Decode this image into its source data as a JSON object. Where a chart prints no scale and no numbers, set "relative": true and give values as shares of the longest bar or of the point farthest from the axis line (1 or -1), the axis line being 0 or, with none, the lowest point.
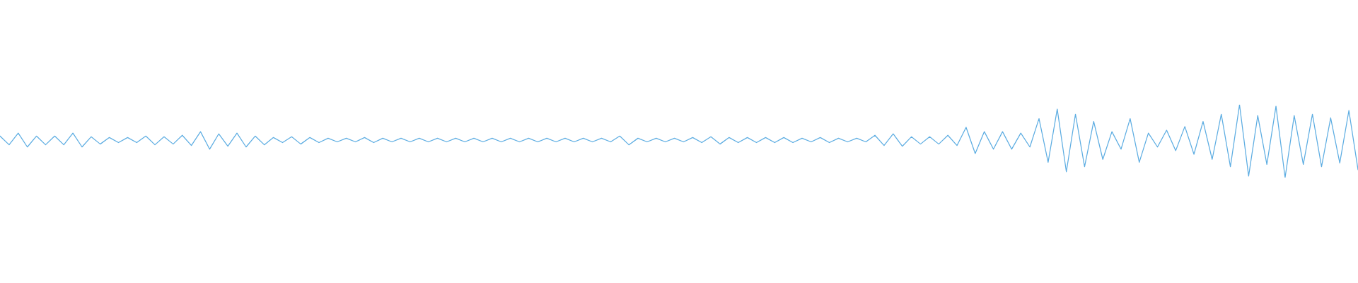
{
  "chart_data": {
    "type": "line",
    "relative": true,
    "color": "#5dade2",
    "categories": [
      null,
      null,
      null,
      null,
      null,
      null,
      null,
      null,
      null,
      null,
      null,
      null,
      null,
      null,
      null,
      null,
      null,
      null,
      null,
      null,
      null,
      null,
      null,
      null,
      null,
      null,
      null,
      null,
      null,
      null,
      null,
      null,
      null,
      null,
      null,
      null,
      null,
      null,
      null,
      null,
      null,
      null,
      null,
      null,
      null,
      null,
      null,
      null,
      null,
      null,
      null,
      null,
      null,
      null,
      null,
      null,
      null,
      null,
      null,
      null,
      null,
      null,
      null,
      null,
      null,
      null,
      null,
      null,
      null,
      null,
      null,
      null,
      null,
      null,
      null,
      null,
      null,
      null,
      null,
      null,
      null,
      null,
      null,
      null,
      null,
      null,
      null,
      null,
      null,
      null,
      null,
      null,
      null,
      null,
      null,
      null,
      null,
      null,
      null,
      null,
      null,
      null,
      null,
      null,
      null,
      null,
      null,
      null,
      null,
      null,
      null,
      null,
      null,
      null,
      null,
      null,
      null,
      null,
      null,
      null,
      null,
      null,
      null,
      null,
      null,
      null,
      null,
      null,
      null,
      null,
      null,
      null,
      null,
      null,
      null,
      null,
      null,
      null,
      null,
      null,
      null,
      null,
      null,
      null,
      null,
      null,
      null,
      null,
      null,
      null
    ],
    "values": [
      0.57,
      0.45,
      0.61,
      0.42,
      0.57,
      0.45,
      0.57,
      0.45,
      0.61,
      0.42,
      0.56,
      0.46,
      0.55,
      0.48,
      0.55,
      0.48,
      0.57,
      0.45,
      0.56,
      0.46,
      0.58,
      0.44,
      0.63,
      0.39,
      0.6,
      0.43,
      0.61,
      0.42,
      0.57,
      0.45,
      0.55,
      0.48,
      0.56,
      0.46,
      0.55,
      0.48,
      0.54,
      0.49,
      0.54,
      0.49,
      0.55,
      0.48,
      0.54,
      0.49,
      0.54,
      0.49,
      0.54,
      0.49,
      0.54,
      0.49,
      0.54,
      0.49,
      0.54,
      0.49,
      0.54,
      0.49,
      0.54,
      0.49,
      0.54,
      0.49,
      0.54,
      0.49,
      0.54,
      0.49,
      0.54,
      0.49,
      0.54,
      0.49,
      0.57,
      0.45,
      0.54,
      0.49,
      0.54,
      0.49,
      0.54,
      0.49,
      0.55,
      0.48,
      0.56,
      0.46,
      0.55,
      0.48,
      0.55,
      0.48,
      0.55,
      0.48,
      0.55,
      0.48,
      0.54,
      0.49,
      0.55,
      0.48,
      0.54,
      0.49,
      0.54,
      0.49,
      0.58,
      0.44,
      0.6,
      0.43,
      0.56,
      0.46,
      0.56,
      0.46,
      0.58,
      0.44,
      0.69,
      0.33,
      0.63,
      0.39,
      0.63,
      0.39,
      0.61,
      0.42,
      0.81,
      0.21,
      0.94,
      0.08,
      0.87,
      0.15,
      0.77,
      0.25,
      0.63,
      0.39,
      0.81,
      0.21,
      0.61,
      0.42,
      0.65,
      0.37,
      0.7,
      0.32,
      0.77,
      0.25,
      0.87,
      0.15,
      1.0,
      0.02,
      0.85,
      0.18,
      0.98,
      0.0,
      0.85,
      0.18,
      0.87,
      0.15,
      0.82,
      0.2,
      0.92,
      0.11
    ]
  }
}
